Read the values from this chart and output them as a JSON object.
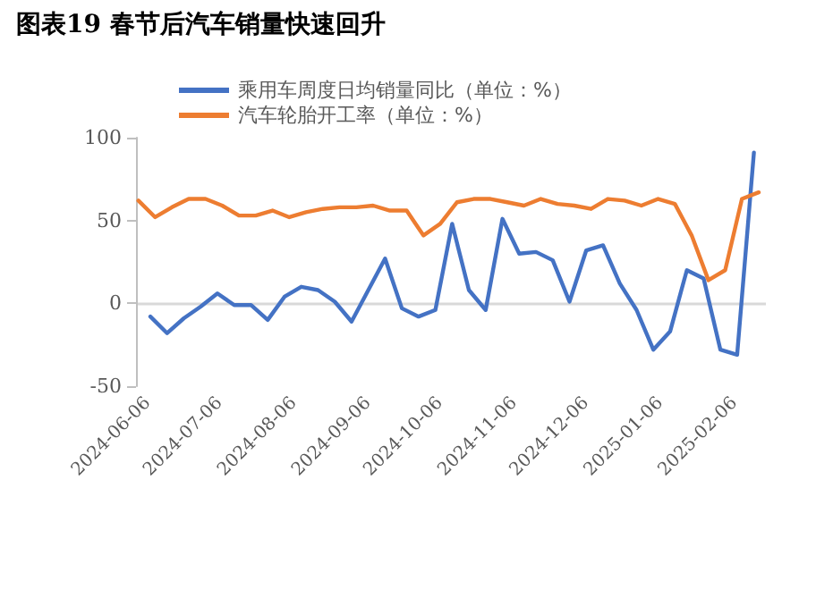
{
  "chart_data": {
    "type": "line",
    "title": "图表19 春节后汽车销量快速回升",
    "series": [
      {
        "name": "乘用车周度日均销量同比（单位：%）",
        "color": "#4472c4",
        "x": [
          "2024-06-07",
          "2024-06-14",
          "2024-06-21",
          "2024-06-28",
          "2024-07-05",
          "2024-07-12",
          "2024-07-19",
          "2024-07-26",
          "2024-08-02",
          "2024-08-09",
          "2024-08-16",
          "2024-08-23",
          "2024-08-30",
          "2024-09-06",
          "2024-09-13",
          "2024-09-20",
          "2024-09-27",
          "2024-10-04",
          "2024-10-11",
          "2024-10-18",
          "2024-10-25",
          "2024-11-01",
          "2024-11-08",
          "2024-11-15",
          "2024-11-22",
          "2024-11-29",
          "2024-12-06",
          "2024-12-13",
          "2024-12-20",
          "2024-12-27",
          "2025-01-03",
          "2025-01-10",
          "2025-01-17",
          "2025-01-24",
          "2025-01-31",
          "2025-02-07",
          "2025-02-14"
        ],
        "values": [
          -8,
          -18,
          -9,
          -2,
          6,
          -1,
          -1,
          -10,
          4,
          10,
          8,
          1,
          -11,
          8,
          27,
          -3,
          -8,
          -4,
          48,
          8,
          -4,
          51,
          30,
          31,
          26,
          1,
          32,
          35,
          12,
          -4,
          -28,
          -17,
          20,
          15,
          -28,
          -31,
          91
        ]
      },
      {
        "name": "汽车轮胎开工率（单位：%）",
        "color": "#ed7d31",
        "x": [
          "2024-06-02",
          "2024-06-09",
          "2024-06-16",
          "2024-06-23",
          "2024-06-30",
          "2024-07-07",
          "2024-07-14",
          "2024-07-21",
          "2024-07-28",
          "2024-08-04",
          "2024-08-11",
          "2024-08-18",
          "2024-08-25",
          "2024-09-01",
          "2024-09-08",
          "2024-09-15",
          "2024-09-22",
          "2024-09-29",
          "2024-10-06",
          "2024-10-13",
          "2024-10-20",
          "2024-10-27",
          "2024-11-03",
          "2024-11-10",
          "2024-11-17",
          "2024-11-24",
          "2024-12-01",
          "2024-12-08",
          "2024-12-15",
          "2024-12-22",
          "2024-12-29",
          "2025-01-05",
          "2025-01-12",
          "2025-01-19",
          "2025-01-26",
          "2025-02-02",
          "2025-02-09",
          "2025-02-16"
        ],
        "values": [
          62,
          52,
          58,
          63,
          63,
          59,
          53,
          53,
          56,
          52,
          55,
          57,
          58,
          58,
          59,
          56,
          56,
          41,
          48,
          61,
          63,
          63,
          61,
          59,
          63,
          60,
          59,
          57,
          63,
          62,
          59,
          63,
          60,
          41,
          14,
          20,
          63,
          67
        ]
      }
    ],
    "xlim": [
      "2024-06-01",
      "2025-02-19"
    ],
    "xticks": [
      "2024-06-06",
      "2024-07-06",
      "2024-08-06",
      "2024-09-06",
      "2024-10-06",
      "2024-11-06",
      "2024-12-06",
      "2025-01-06",
      "2025-02-06"
    ],
    "ylim": [
      -50,
      100
    ],
    "yticks": [
      -50,
      0,
      50,
      100
    ],
    "ref_lines": [
      {
        "axis": "y",
        "value": 0,
        "color": "#d9d9d9"
      }
    ],
    "grid": false,
    "legend": "top",
    "marker": "none",
    "line_style": "solid"
  }
}
